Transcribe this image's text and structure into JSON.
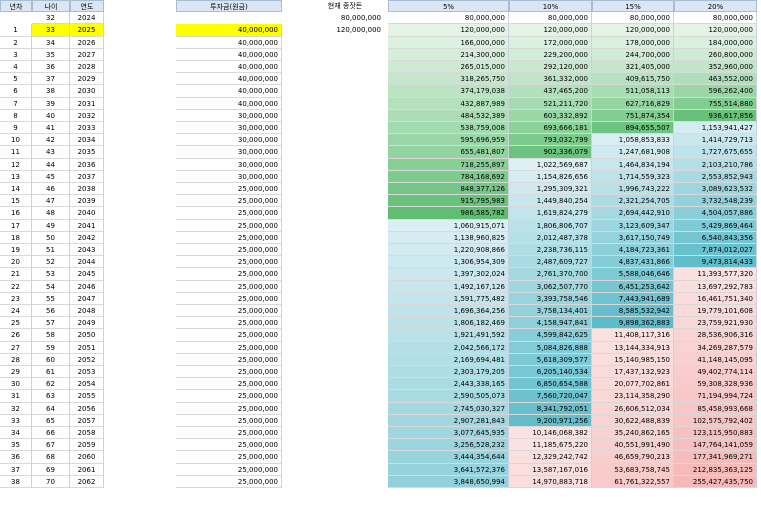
{
  "headers": {
    "year_no": "년차",
    "age": "나이",
    "year": "연도",
    "invest": "투자금(원금)",
    "current": "현재 종잣돈",
    "rates": [
      "5%",
      "10%",
      "15%",
      "20%"
    ]
  },
  "initial": {
    "seed1": "80,000,000",
    "seed2": "120,000,000",
    "row0": {
      "age": "32",
      "year": "2024"
    },
    "rates_row0": [
      "80,000,000",
      "80,000,000",
      "80,000,000",
      "80,000,000"
    ]
  },
  "rows": [
    {
      "n": "1",
      "age": "33",
      "year": "2025",
      "inv": "40,000,000",
      "v": [
        "120,000,000",
        "120,000,000",
        "120,000,000",
        "120,000,000"
      ]
    },
    {
      "n": "2",
      "age": "34",
      "year": "2026",
      "inv": "40,000,000",
      "v": [
        "166,000,000",
        "172,000,000",
        "178,000,000",
        "184,000,000"
      ]
    },
    {
      "n": "3",
      "age": "35",
      "year": "2027",
      "inv": "40,000,000",
      "v": [
        "214,300,000",
        "229,200,000",
        "244,700,000",
        "260,800,000"
      ]
    },
    {
      "n": "4",
      "age": "36",
      "year": "2028",
      "inv": "40,000,000",
      "v": [
        "265,015,000",
        "292,120,000",
        "321,405,000",
        "352,960,000"
      ]
    },
    {
      "n": "5",
      "age": "37",
      "year": "2029",
      "inv": "40,000,000",
      "v": [
        "318,265,750",
        "361,332,000",
        "409,615,750",
        "463,552,000"
      ]
    },
    {
      "n": "6",
      "age": "38",
      "year": "2030",
      "inv": "40,000,000",
      "v": [
        "374,179,038",
        "437,465,200",
        "511,058,113",
        "596,262,400"
      ]
    },
    {
      "n": "7",
      "age": "39",
      "year": "2031",
      "inv": "40,000,000",
      "v": [
        "432,887,989",
        "521,211,720",
        "627,716,829",
        "755,514,880"
      ]
    },
    {
      "n": "8",
      "age": "40",
      "year": "2032",
      "inv": "30,000,000",
      "v": [
        "484,532,389",
        "603,332,892",
        "751,874,354",
        "936,617,856"
      ]
    },
    {
      "n": "9",
      "age": "41",
      "year": "2033",
      "inv": "30,000,000",
      "v": [
        "538,759,008",
        "693,666,181",
        "894,655,507",
        "1,153,941,427"
      ]
    },
    {
      "n": "10",
      "age": "42",
      "year": "2034",
      "inv": "30,000,000",
      "v": [
        "595,696,959",
        "793,032,799",
        "1,058,853,833",
        "1,414,729,713"
      ]
    },
    {
      "n": "11",
      "age": "43",
      "year": "2035",
      "inv": "30,000,000",
      "v": [
        "655,481,807",
        "902,336,079",
        "1,247,681,908",
        "1,727,675,655"
      ]
    },
    {
      "n": "12",
      "age": "44",
      "year": "2036",
      "inv": "30,000,000",
      "v": [
        "718,255,897",
        "1,022,569,687",
        "1,464,834,194",
        "2,103,210,786"
      ]
    },
    {
      "n": "13",
      "age": "45",
      "year": "2037",
      "inv": "30,000,000",
      "v": [
        "784,168,692",
        "1,154,826,656",
        "1,714,559,323",
        "2,553,852,943"
      ]
    },
    {
      "n": "14",
      "age": "46",
      "year": "2038",
      "inv": "25,000,000",
      "v": [
        "848,377,126",
        "1,295,309,321",
        "1,996,743,222",
        "3,089,623,532"
      ]
    },
    {
      "n": "15",
      "age": "47",
      "year": "2039",
      "inv": "25,000,000",
      "v": [
        "915,795,983",
        "1,449,840,254",
        "2,321,254,705",
        "3,732,548,239"
      ]
    },
    {
      "n": "16",
      "age": "48",
      "year": "2040",
      "inv": "25,000,000",
      "v": [
        "986,585,782",
        "1,619,824,279",
        "2,694,442,910",
        "4,504,057,886"
      ]
    },
    {
      "n": "17",
      "age": "49",
      "year": "2041",
      "inv": "25,000,000",
      "v": [
        "1,060,915,071",
        "1,806,806,707",
        "3,123,609,347",
        "5,429,869,464"
      ]
    },
    {
      "n": "18",
      "age": "50",
      "year": "2042",
      "inv": "25,000,000",
      "v": [
        "1,138,960,825",
        "2,012,487,378",
        "3,617,150,749",
        "6,540,843,356"
      ]
    },
    {
      "n": "19",
      "age": "51",
      "year": "2043",
      "inv": "25,000,000",
      "v": [
        "1,220,908,866",
        "2,238,736,115",
        "4,184,723,361",
        "7,874,012,027"
      ]
    },
    {
      "n": "20",
      "age": "52",
      "year": "2044",
      "inv": "25,000,000",
      "v": [
        "1,306,954,309",
        "2,487,609,727",
        "4,837,431,866",
        "9,473,814,433"
      ]
    },
    {
      "n": "21",
      "age": "53",
      "year": "2045",
      "inv": "25,000,000",
      "v": [
        "1,397,302,024",
        "2,761,370,700",
        "5,588,046,646",
        "11,393,577,320"
      ]
    },
    {
      "n": "22",
      "age": "54",
      "year": "2046",
      "inv": "25,000,000",
      "v": [
        "1,492,167,126",
        "3,062,507,770",
        "6,451,253,642",
        "13,697,292,783"
      ]
    },
    {
      "n": "23",
      "age": "55",
      "year": "2047",
      "inv": "25,000,000",
      "v": [
        "1,591,775,482",
        "3,393,758,546",
        "7,443,941,689",
        "16,461,751,340"
      ]
    },
    {
      "n": "24",
      "age": "56",
      "year": "2048",
      "inv": "25,000,000",
      "v": [
        "1,696,364,256",
        "3,758,134,401",
        "8,585,532,942",
        "19,779,101,608"
      ]
    },
    {
      "n": "25",
      "age": "57",
      "year": "2049",
      "inv": "25,000,000",
      "v": [
        "1,806,182,469",
        "4,158,947,841",
        "9,898,362,883",
        "23,759,921,930"
      ]
    },
    {
      "n": "26",
      "age": "58",
      "year": "2050",
      "inv": "25,000,000",
      "v": [
        "1,921,491,592",
        "4,599,842,625",
        "11,408,117,316",
        "28,536,906,316"
      ]
    },
    {
      "n": "27",
      "age": "59",
      "year": "2051",
      "inv": "25,000,000",
      "v": [
        "2,042,566,172",
        "5,084,826,888",
        "13,144,334,913",
        "34,269,287,579"
      ]
    },
    {
      "n": "28",
      "age": "60",
      "year": "2052",
      "inv": "25,000,000",
      "v": [
        "2,169,694,481",
        "5,618,309,577",
        "15,140,985,150",
        "41,148,145,095"
      ]
    },
    {
      "n": "29",
      "age": "61",
      "year": "2053",
      "inv": "25,000,000",
      "v": [
        "2,303,179,205",
        "6,205,140,534",
        "17,437,132,923",
        "49,402,774,114"
      ]
    },
    {
      "n": "30",
      "age": "62",
      "year": "2054",
      "inv": "25,000,000",
      "v": [
        "2,443,338,165",
        "6,850,654,588",
        "20,077,702,861",
        "59,308,328,936"
      ]
    },
    {
      "n": "31",
      "age": "63",
      "year": "2055",
      "inv": "25,000,000",
      "v": [
        "2,590,505,073",
        "7,560,720,047",
        "23,114,358,290",
        "71,194,994,724"
      ]
    },
    {
      "n": "32",
      "age": "64",
      "year": "2056",
      "inv": "25,000,000",
      "v": [
        "2,745,030,327",
        "8,341,792,051",
        "26,606,512,034",
        "85,458,993,668"
      ]
    },
    {
      "n": "33",
      "age": "65",
      "year": "2057",
      "inv": "25,000,000",
      "v": [
        "2,907,281,843",
        "9,200,971,256",
        "30,622,488,839",
        "102,575,792,402"
      ]
    },
    {
      "n": "34",
      "age": "66",
      "year": "2058",
      "inv": "25,000,000",
      "v": [
        "3,077,645,935",
        "10,146,068,382",
        "35,240,862,165",
        "123,115,950,883"
      ]
    },
    {
      "n": "35",
      "age": "67",
      "year": "2059",
      "inv": "25,000,000",
      "v": [
        "3,256,528,232",
        "11,185,675,220",
        "40,551,991,490",
        "147,764,141,059"
      ]
    },
    {
      "n": "36",
      "age": "68",
      "year": "2060",
      "inv": "25,000,000",
      "v": [
        "3,444,354,644",
        "12,329,242,742",
        "46,659,790,213",
        "177,341,969,271"
      ]
    },
    {
      "n": "37",
      "age": "69",
      "year": "2061",
      "inv": "25,000,000",
      "v": [
        "3,641,572,376",
        "13,587,167,016",
        "53,683,758,745",
        "212,835,363,125"
      ]
    },
    {
      "n": "38",
      "age": "70",
      "year": "2062",
      "inv": "25,000,000",
      "v": [
        "3,848,650,994",
        "14,970,883,718",
        "61,761,322,557",
        "255,427,435,750"
      ]
    }
  ],
  "colors": {
    "header_bg": "#dbe6f4",
    "yellow": "#ffff00",
    "green_light": "#e3f4e6",
    "green_dark": "#5fbe73",
    "blue_light": "#ddeff4",
    "blue_dark": "#5dbcc9",
    "pink_light": "#fbe2e2",
    "pink_dark": "#f6b5b5"
  }
}
